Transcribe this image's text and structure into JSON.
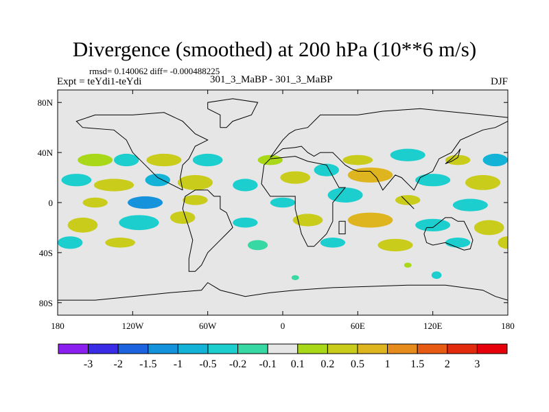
{
  "chart_data": {
    "type": "heatmap",
    "title": "Divergence (smoothed) at 200 hPa (10**6 m/s)",
    "subtitle_left": "Expt = teYdi1-teYdi",
    "subtitle_center": "301_3_MaBP - 301_3_MaBP",
    "subtitle_right": "DJF",
    "stats": "rmsd= 0.140062 diff= -0.000488225",
    "x_range": [
      -180,
      180
    ],
    "y_range": [
      -90,
      90
    ],
    "x_ticks": [
      {
        "value": -180,
        "label": "180"
      },
      {
        "value": -120,
        "label": "120W"
      },
      {
        "value": -60,
        "label": "60W"
      },
      {
        "value": 0,
        "label": "0"
      },
      {
        "value": 60,
        "label": "60E"
      },
      {
        "value": 120,
        "label": "120E"
      },
      {
        "value": 180,
        "label": "180"
      }
    ],
    "y_ticks": [
      {
        "value": 80,
        "label": "80N"
      },
      {
        "value": 40,
        "label": "40N"
      },
      {
        "value": 0,
        "label": "0"
      },
      {
        "value": -40,
        "label": "40S"
      },
      {
        "value": -80,
        "label": "80S"
      }
    ],
    "colorbar_levels": [
      "-3",
      "-2",
      "-1.5",
      "-1",
      "-0.5",
      "-0.2",
      "-0.1",
      "0.1",
      "0.2",
      "0.5",
      "1",
      "1.5",
      "2",
      "3"
    ],
    "colorbar_colors": [
      "#8a1ff0",
      "#3a2be6",
      "#1c63e0",
      "#1592dc",
      "#13b3d8",
      "#1ccfce",
      "#38d8a4",
      "#e6e6e6",
      "#a8d818",
      "#c9cc1a",
      "#deb51e",
      "#e68c1c",
      "#e65a14",
      "#e22a0c",
      "#e6000a"
    ],
    "background_color": "#e6e6e6",
    "blobs": [
      {
        "lon": -150,
        "lat": 34,
        "rlon": 14,
        "rlat": 5,
        "level": 8
      },
      {
        "lon": -125,
        "lat": 34,
        "rlon": 10,
        "rlat": 5,
        "level": 5
      },
      {
        "lon": -95,
        "lat": 34,
        "rlon": 14,
        "rlat": 5,
        "level": 9
      },
      {
        "lon": -60,
        "lat": 34,
        "rlon": 12,
        "rlat": 5,
        "level": 5
      },
      {
        "lon": -10,
        "lat": 34,
        "rlon": 10,
        "rlat": 4,
        "level": 8
      },
      {
        "lon": 60,
        "lat": 34,
        "rlon": 12,
        "rlat": 4,
        "level": 9
      },
      {
        "lon": 100,
        "lat": 38,
        "rlon": 14,
        "rlat": 5,
        "level": 5
      },
      {
        "lon": 140,
        "lat": 34,
        "rlon": 10,
        "rlat": 4,
        "level": 9
      },
      {
        "lon": 170,
        "lat": 34,
        "rlon": 10,
        "rlat": 5,
        "level": 4
      },
      {
        "lon": -165,
        "lat": 18,
        "rlon": 12,
        "rlat": 5,
        "level": 5
      },
      {
        "lon": -135,
        "lat": 14,
        "rlon": 16,
        "rlat": 5,
        "level": 9
      },
      {
        "lon": -100,
        "lat": 18,
        "rlon": 10,
        "rlat": 5,
        "level": 4
      },
      {
        "lon": -70,
        "lat": 16,
        "rlon": 14,
        "rlat": 6,
        "level": 9
      },
      {
        "lon": -30,
        "lat": 14,
        "rlon": 10,
        "rlat": 5,
        "level": 5
      },
      {
        "lon": 10,
        "lat": 20,
        "rlon": 12,
        "rlat": 5,
        "level": 9
      },
      {
        "lon": 35,
        "lat": 26,
        "rlon": 10,
        "rlat": 5,
        "level": 5
      },
      {
        "lon": 70,
        "lat": 22,
        "rlon": 18,
        "rlat": 6,
        "level": 10
      },
      {
        "lon": 120,
        "lat": 18,
        "rlon": 14,
        "rlat": 5,
        "level": 5
      },
      {
        "lon": 160,
        "lat": 16,
        "rlon": 14,
        "rlat": 6,
        "level": 9
      },
      {
        "lon": -150,
        "lat": 0,
        "rlon": 10,
        "rlat": 4,
        "level": 9
      },
      {
        "lon": -110,
        "lat": 0,
        "rlon": 14,
        "rlat": 5,
        "level": 3
      },
      {
        "lon": -70,
        "lat": 2,
        "rlon": 10,
        "rlat": 4,
        "level": 9
      },
      {
        "lon": 0,
        "lat": 0,
        "rlon": 10,
        "rlat": 4,
        "level": 5
      },
      {
        "lon": 50,
        "lat": 6,
        "rlon": 14,
        "rlat": 6,
        "level": 5
      },
      {
        "lon": 100,
        "lat": 2,
        "rlon": 10,
        "rlat": 4,
        "level": 9
      },
      {
        "lon": 150,
        "lat": -2,
        "rlon": 14,
        "rlat": 5,
        "level": 5
      },
      {
        "lon": -160,
        "lat": -18,
        "rlon": 12,
        "rlat": 6,
        "level": 9
      },
      {
        "lon": -115,
        "lat": -16,
        "rlon": 16,
        "rlat": 6,
        "level": 5
      },
      {
        "lon": -80,
        "lat": -12,
        "rlon": 10,
        "rlat": 5,
        "level": 9
      },
      {
        "lon": -30,
        "lat": -16,
        "rlon": 10,
        "rlat": 4,
        "level": 5
      },
      {
        "lon": 20,
        "lat": -14,
        "rlon": 12,
        "rlat": 5,
        "level": 9
      },
      {
        "lon": 70,
        "lat": -14,
        "rlon": 18,
        "rlat": 6,
        "level": 10
      },
      {
        "lon": 120,
        "lat": -18,
        "rlon": 14,
        "rlat": 5,
        "level": 5
      },
      {
        "lon": 165,
        "lat": -20,
        "rlon": 12,
        "rlat": 6,
        "level": 9
      },
      {
        "lon": -170,
        "lat": -32,
        "rlon": 10,
        "rlat": 5,
        "level": 5
      },
      {
        "lon": -130,
        "lat": -32,
        "rlon": 12,
        "rlat": 4,
        "level": 9
      },
      {
        "lon": -20,
        "lat": -34,
        "rlon": 8,
        "rlat": 4,
        "level": 6
      },
      {
        "lon": 40,
        "lat": -32,
        "rlon": 10,
        "rlat": 4,
        "level": 5
      },
      {
        "lon": 90,
        "lat": -34,
        "rlon": 14,
        "rlat": 5,
        "level": 9
      },
      {
        "lon": 140,
        "lat": -32,
        "rlon": 10,
        "rlat": 4,
        "level": 5
      },
      {
        "lon": 180,
        "lat": -32,
        "rlon": 8,
        "rlat": 5,
        "level": 9
      },
      {
        "lon": 10,
        "lat": -60,
        "rlon": 3,
        "rlat": 2,
        "level": 6
      },
      {
        "lon": 123,
        "lat": -58,
        "rlon": 4,
        "rlat": 3,
        "level": 5
      },
      {
        "lon": 100,
        "lat": -50,
        "rlon": 3,
        "rlat": 2,
        "level": 8
      }
    ],
    "coastlines": [
      [
        [
          -55,
          5
        ],
        [
          -50,
          5
        ],
        [
          -50,
          -5
        ],
        [
          -45,
          -8
        ],
        [
          -40,
          -20
        ],
        [
          -45,
          -25
        ],
        [
          -50,
          -30
        ],
        [
          -55,
          -35
        ],
        [
          -60,
          -40
        ],
        [
          -65,
          -50
        ],
        [
          -70,
          -55
        ],
        [
          -75,
          -55
        ],
        [
          -75,
          -45
        ],
        [
          -72,
          -30
        ],
        [
          -75,
          -20
        ],
        [
          -80,
          -5
        ],
        [
          -78,
          5
        ],
        [
          -70,
          10
        ],
        [
          -60,
          10
        ],
        [
          -55,
          5
        ]
      ],
      [
        [
          -80,
          10
        ],
        [
          -90,
          15
        ],
        [
          -100,
          20
        ],
        [
          -110,
          30
        ],
        [
          -115,
          35
        ],
        [
          -120,
          40
        ],
        [
          -125,
          50
        ],
        [
          -135,
          58
        ],
        [
          -160,
          60
        ],
        [
          -165,
          65
        ],
        [
          -150,
          70
        ],
        [
          -120,
          70
        ],
        [
          -95,
          72
        ],
        [
          -80,
          65
        ],
        [
          -70,
          55
        ],
        [
          -60,
          50
        ],
        [
          -70,
          45
        ],
        [
          -75,
          35
        ],
        [
          -80,
          30
        ],
        [
          -82,
          20
        ],
        [
          -80,
          10
        ]
      ],
      [
        [
          -50,
          60
        ],
        [
          -45,
          60
        ],
        [
          -40,
          65
        ],
        [
          -25,
          70
        ],
        [
          -20,
          80
        ],
        [
          -40,
          83
        ],
        [
          -60,
          80
        ],
        [
          -60,
          75
        ],
        [
          -50,
          70
        ],
        [
          -50,
          60
        ]
      ],
      [
        [
          -15,
          30
        ],
        [
          -10,
          35
        ],
        [
          10,
          37
        ],
        [
          20,
          33
        ],
        [
          30,
          31
        ],
        [
          35,
          30
        ],
        [
          45,
          12
        ],
        [
          50,
          12
        ],
        [
          40,
          0
        ],
        [
          40,
          -15
        ],
        [
          35,
          -25
        ],
        [
          25,
          -35
        ],
        [
          20,
          -35
        ],
        [
          15,
          -25
        ],
        [
          10,
          -5
        ],
        [
          10,
          5
        ],
        [
          0,
          5
        ],
        [
          -10,
          5
        ],
        [
          -17,
          15
        ],
        [
          -15,
          30
        ]
      ],
      [
        [
          -10,
          36
        ],
        [
          -5,
          43
        ],
        [
          0,
          50
        ],
        [
          5,
          55
        ],
        [
          10,
          58
        ],
        [
          20,
          60
        ],
        [
          30,
          70
        ],
        [
          60,
          70
        ],
        [
          80,
          73
        ],
        [
          110,
          75
        ],
        [
          140,
          72
        ],
        [
          160,
          70
        ],
        [
          180,
          68
        ],
        [
          180,
          65
        ],
        [
          170,
          60
        ],
        [
          160,
          58
        ],
        [
          142,
          50
        ],
        [
          135,
          40
        ],
        [
          125,
          35
        ],
        [
          120,
          25
        ],
        [
          110,
          20
        ],
        [
          105,
          10
        ],
        [
          100,
          15
        ],
        [
          95,
          20
        ],
        [
          90,
          22
        ],
        [
          80,
          10
        ],
        [
          75,
          20
        ],
        [
          70,
          25
        ],
        [
          60,
          25
        ],
        [
          55,
          27
        ],
        [
          50,
          30
        ],
        [
          45,
          35
        ],
        [
          40,
          40
        ],
        [
          30,
          40
        ],
        [
          25,
          37
        ],
        [
          20,
          40
        ],
        [
          15,
          45
        ],
        [
          10,
          44
        ],
        [
          0,
          43
        ],
        [
          -10,
          36
        ]
      ],
      [
        [
          115,
          -20
        ],
        [
          120,
          -20
        ],
        [
          130,
          -12
        ],
        [
          135,
          -12
        ],
        [
          140,
          -15
        ],
        [
          145,
          -15
        ],
        [
          150,
          -25
        ],
        [
          152,
          -30
        ],
        [
          150,
          -37
        ],
        [
          145,
          -38
        ],
        [
          140,
          -36
        ],
        [
          130,
          -32
        ],
        [
          120,
          -34
        ],
        [
          115,
          -32
        ],
        [
          113,
          -25
        ],
        [
          115,
          -20
        ]
      ],
      [
        [
          -180,
          -78
        ],
        [
          -150,
          -78
        ],
        [
          -120,
          -75
        ],
        [
          -90,
          -72
        ],
        [
          -65,
          -70
        ],
        [
          -60,
          -64
        ],
        [
          -50,
          -70
        ],
        [
          -30,
          -75
        ],
        [
          -10,
          -72
        ],
        [
          10,
          -70
        ],
        [
          40,
          -68
        ],
        [
          70,
          -67
        ],
        [
          100,
          -66
        ],
        [
          130,
          -66
        ],
        [
          160,
          -70
        ],
        [
          170,
          -75
        ],
        [
          180,
          -78
        ],
        [
          180,
          -90
        ],
        [
          -180,
          -90
        ],
        [
          -180,
          -78
        ]
      ],
      [
        [
          45,
          -15
        ],
        [
          50,
          -15
        ],
        [
          50,
          -25
        ],
        [
          45,
          -25
        ],
        [
          45,
          -15
        ]
      ],
      [
        [
          95,
          5
        ],
        [
          105,
          -5
        ],
        [
          100,
          0
        ],
        [
          95,
          5
        ]
      ],
      [
        [
          130,
          31
        ],
        [
          135,
          35
        ],
        [
          140,
          40
        ],
        [
          142,
          43
        ],
        [
          140,
          36
        ],
        [
          135,
          33
        ],
        [
          130,
          31
        ]
      ]
    ]
  }
}
